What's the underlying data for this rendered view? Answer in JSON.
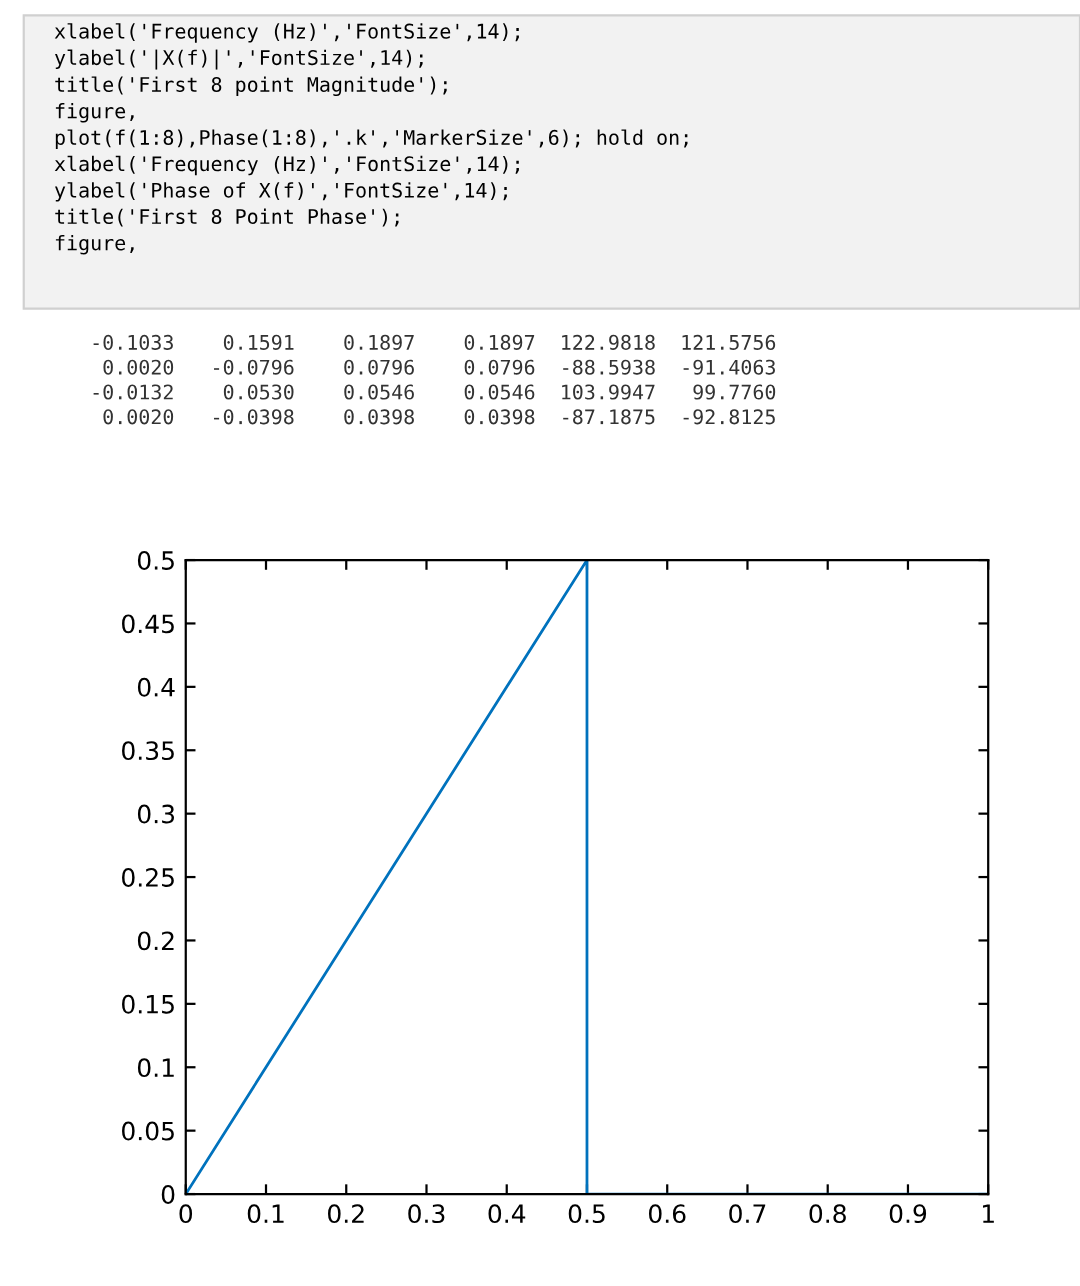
{
  "chart_data": {
    "type": "line",
    "x": [
      0,
      0.5,
      0.5,
      1
    ],
    "series": [
      {
        "color": "#0072bd",
        "values": [
          0,
          0.5,
          0,
          0
        ]
      }
    ],
    "xlim": [
      0,
      1
    ],
    "xticks": [
      0,
      0.1,
      0.2,
      0.3,
      0.4,
      0.5,
      0.6,
      0.7,
      0.8,
      0.9,
      1
    ],
    "ylim": [
      0,
      0.5
    ],
    "yticks": [
      0,
      0.05,
      0.1,
      0.15,
      0.2,
      0.25,
      0.3,
      0.35,
      0.4,
      0.45,
      0.5
    ],
    "grid": false,
    "legend": false,
    "marker": "none",
    "line_style": "solid",
    "annotations": [
      "xlabel('Frequency (Hz)','FontSize',14);\nylabel('|X(f)|','FontSize',14);\ntitle('First 8 point Magnitude');\nfigure,\nplot(f(1:8),Phase(1:8),'.k','MarkerSize',6); hold on;\nxlabel('Frequency (Hz)','FontSize',14);\nylabel('Phase of X(f)','FontSize',14);\ntitle('First 8 Point Phase');\nfigure,",
      "   -0.1033    0.1591    0.1897    0.1897  122.9818  121.5756\n    0.0020   -0.0796    0.0796    0.0796  -88.5938  -91.4063\n   -0.0132    0.0530    0.0546    0.0546  103.9947   99.7760\n    0.0020   -0.0398    0.0398    0.0398  -87.1875  -92.8125"
    ]
  }
}
